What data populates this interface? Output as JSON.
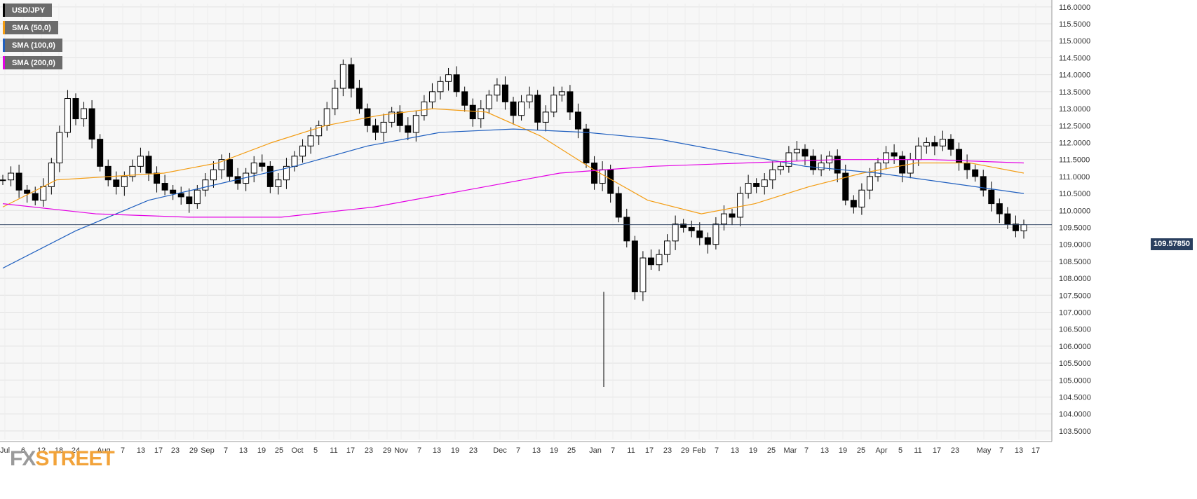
{
  "legend": {
    "items": [
      {
        "label": "USD/JPY",
        "color": "#000000"
      },
      {
        "label": "SMA (50,0)",
        "color": "#f39c12"
      },
      {
        "label": "SMA (100,0)",
        "color": "#1f5fbf"
      },
      {
        "label": "SMA (200,0)",
        "color": "#e400e4"
      }
    ]
  },
  "logo": {
    "fx": "FX",
    "street": "STREET"
  },
  "current_price": "109.57850",
  "chart_data": {
    "type": "candlestick",
    "ylim": [
      103.25,
      116.1
    ],
    "y_ticks": [
      "103.5000",
      "104.0000",
      "104.5000",
      "105.0000",
      "105.5000",
      "106.0000",
      "106.5000",
      "107.0000",
      "107.5000",
      "108.0000",
      "108.5000",
      "109.0000",
      "109.5000",
      "110.0000",
      "110.5000",
      "111.0000",
      "111.5000",
      "112.0000",
      "112.5000",
      "113.0000",
      "113.5000",
      "114.0000",
      "114.5000",
      "115.0000",
      "115.5000",
      "116.0000"
    ],
    "x_ticks": [
      "Jul",
      "6",
      "12",
      "18",
      "24",
      "Aug",
      "7",
      "13",
      "17",
      "23",
      "29",
      "Sep",
      "7",
      "13",
      "19",
      "25",
      "Oct",
      "5",
      "11",
      "17",
      "23",
      "29",
      "Nov",
      "7",
      "13",
      "19",
      "23",
      "Dec",
      "7",
      "13",
      "19",
      "25",
      "Jan",
      "7",
      "11",
      "17",
      "23",
      "29",
      "Feb",
      "7",
      "13",
      "19",
      "25",
      "Mar",
      "7",
      "13",
      "19",
      "25",
      "Apr",
      "5",
      "11",
      "17",
      "23",
      "May",
      "7",
      "13",
      "17"
    ],
    "grid": true,
    "series": [
      {
        "name": "USD/JPY",
        "close_path": [
          110.9,
          111.1,
          110.6,
          110.5,
          110.3,
          110.7,
          111.4,
          112.3,
          113.3,
          112.7,
          113.0,
          112.1,
          111.3,
          110.9,
          110.7,
          111.0,
          111.3,
          111.6,
          111.1,
          110.8,
          110.6,
          110.5,
          110.4,
          110.2,
          110.6,
          110.9,
          111.2,
          111.5,
          111.0,
          110.8,
          111.1,
          111.4,
          111.3,
          110.7,
          110.9,
          111.3,
          111.6,
          111.9,
          112.2,
          112.5,
          113.0,
          113.6,
          114.3,
          113.6,
          113.0,
          112.5,
          112.3,
          112.6,
          112.9,
          112.5,
          112.3,
          112.8,
          113.2,
          113.5,
          113.8,
          114.0,
          113.5,
          113.1,
          112.7,
          113.0,
          113.4,
          113.7,
          113.2,
          112.8,
          113.2,
          113.4,
          112.6,
          112.9,
          113.4,
          113.5,
          112.9,
          112.4,
          111.4,
          110.8,
          111.2,
          110.5,
          109.8,
          109.1,
          107.6,
          108.6,
          108.4,
          108.7,
          109.1,
          109.6,
          109.5,
          109.4,
          109.2,
          109.0,
          109.6,
          109.9,
          109.8,
          110.5,
          110.8,
          110.7,
          110.9,
          111.2,
          111.3,
          111.7,
          111.8,
          111.6,
          111.2,
          111.4,
          111.6,
          111.1,
          110.3,
          110.1,
          110.6,
          111.0,
          111.4,
          111.7,
          111.6,
          111.1,
          111.5,
          111.9,
          112.0,
          111.9,
          112.1,
          111.8,
          111.4,
          111.2,
          111.0,
          110.6,
          110.2,
          109.9,
          109.6,
          109.4,
          109.58
        ]
      },
      {
        "name": "SMA (50,0)",
        "values": [
          110.1,
          110.9,
          111.0,
          111.1,
          111.4,
          112.0,
          112.5,
          112.8,
          113.0,
          112.9,
          112.2,
          111.2,
          110.3,
          109.9,
          110.2,
          110.7,
          111.1,
          111.4,
          111.4,
          111.1
        ]
      },
      {
        "name": "SMA (100,0)",
        "values": [
          108.3,
          109.4,
          110.3,
          110.8,
          111.3,
          111.9,
          112.3,
          112.4,
          112.3,
          112.1,
          111.7,
          111.3,
          111.1,
          110.8,
          110.5
        ]
      },
      {
        "name": "SMA (200,0)",
        "values": [
          110.2,
          109.9,
          109.8,
          109.8,
          110.1,
          110.6,
          111.1,
          111.3,
          111.4,
          111.5,
          111.5,
          111.4
        ]
      }
    ],
    "low_spike": {
      "label": "Jan",
      "value": 104.8
    }
  }
}
